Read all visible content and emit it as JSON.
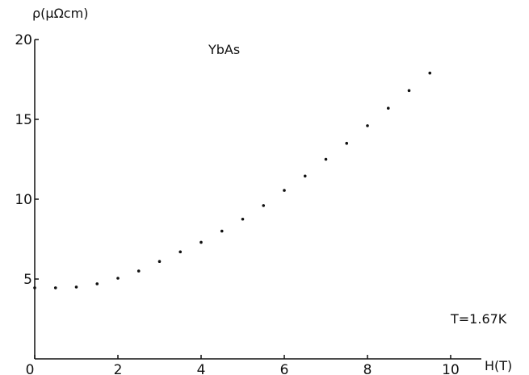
{
  "chart_data": {
    "type": "scatter",
    "title": "YbAs",
    "xlabel": "H(T)",
    "ylabel": "ρ(μΩcm)",
    "annotation": "T=1.67K",
    "xlim": [
      0,
      12
    ],
    "ylim": [
      0,
      20
    ],
    "x_ticks": [
      0,
      2,
      4,
      6,
      8,
      10
    ],
    "x_tick_labels": [
      "0",
      "2",
      "4",
      "6",
      "8",
      "10"
    ],
    "y_ticks": [
      5,
      10,
      15,
      20
    ],
    "y_tick_labels": [
      "5",
      "10",
      "15",
      "20"
    ],
    "grid": false,
    "legend": "none",
    "marker_color": "#111111",
    "x": [
      0,
      0.5,
      1.0,
      1.5,
      2.0,
      2.5,
      3.0,
      3.5,
      4.0,
      4.5,
      5.0,
      5.5,
      6.0,
      6.5,
      7.0,
      7.5,
      8.0,
      8.5,
      9.0,
      9.5
    ],
    "y": [
      4.45,
      4.45,
      4.5,
      4.7,
      5.05,
      5.5,
      6.1,
      6.7,
      7.3,
      8.0,
      8.75,
      9.6,
      10.55,
      11.45,
      12.5,
      13.5,
      14.6,
      15.7,
      16.8,
      17.9
    ]
  }
}
